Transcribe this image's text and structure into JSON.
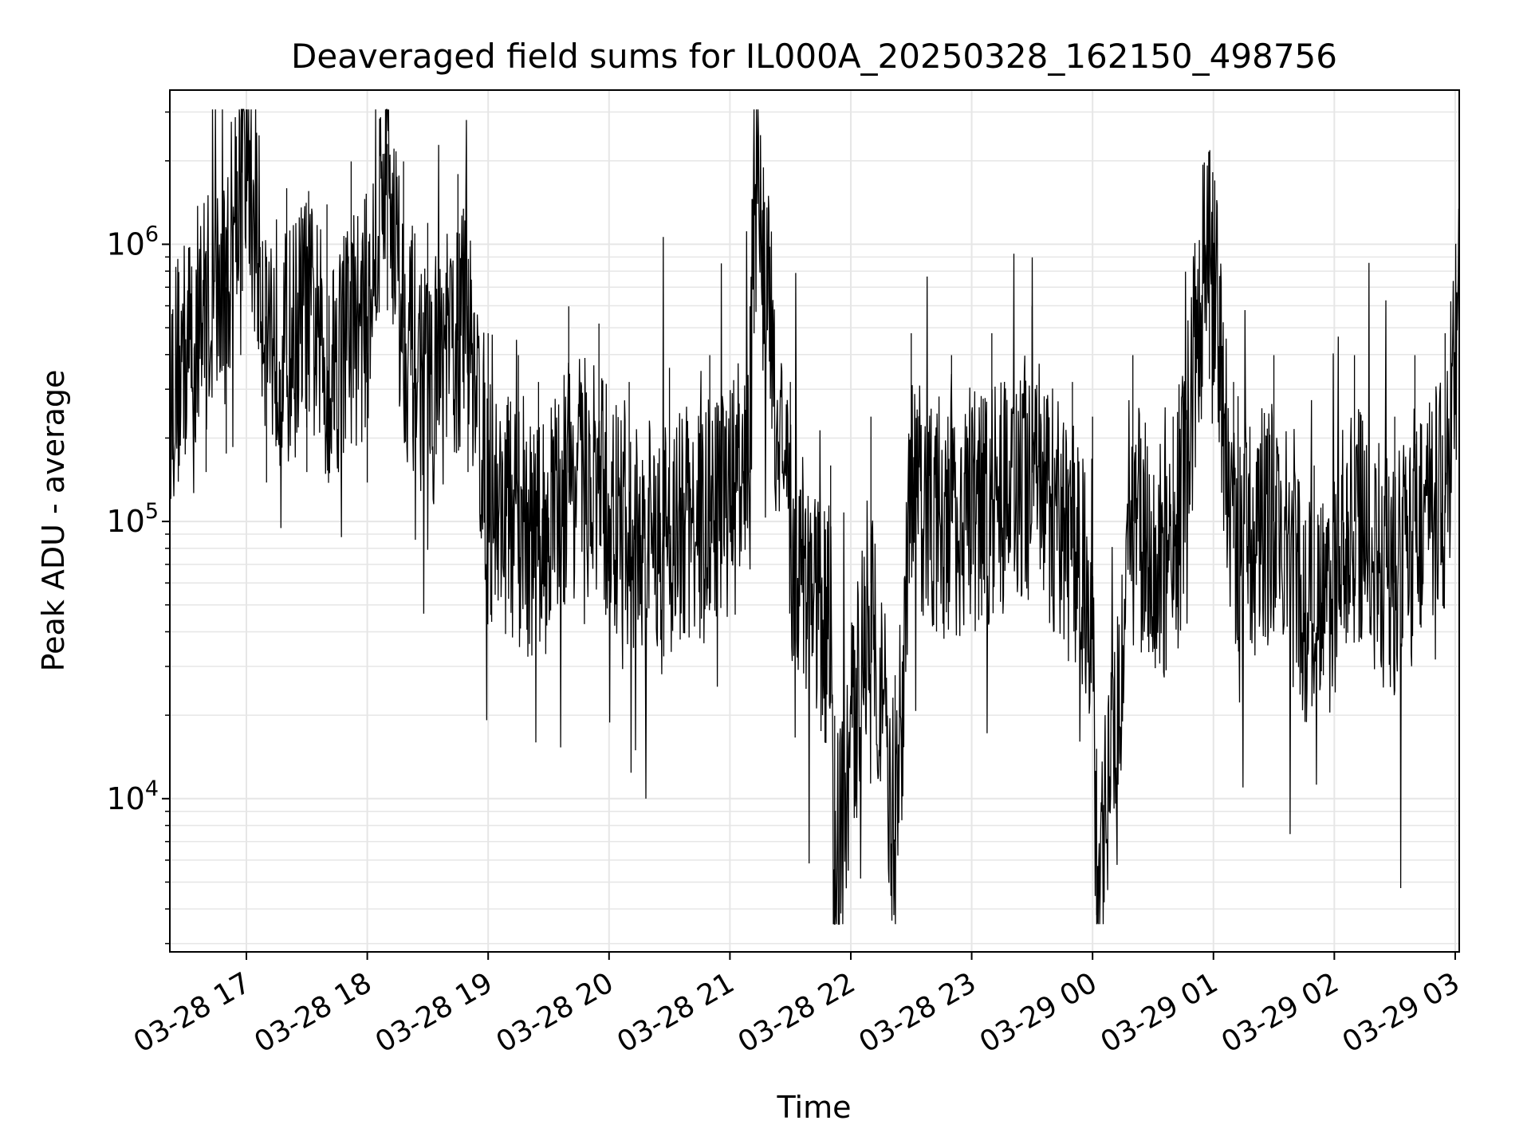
{
  "chart_data": {
    "type": "line",
    "title": "Deaveraged field sums for IL000A_20250328_162150_498756",
    "xlabel": "Time",
    "ylabel": "Peak ADU - average",
    "x_ticks": [
      "03-28 17",
      "03-28 18",
      "03-28 19",
      "03-28 20",
      "03-28 21",
      "03-28 22",
      "03-28 23",
      "03-29 00",
      "03-29 01",
      "03-29 02",
      "03-29 03"
    ],
    "y_ticks": [
      {
        "base": "10",
        "exp": "4",
        "value": 10000
      },
      {
        "base": "10",
        "exp": "5",
        "value": 100000
      },
      {
        "base": "10",
        "exp": "6",
        "value": 1000000
      }
    ],
    "yscale": "log",
    "ylim": [
      2800,
      3600000
    ],
    "xlim": [
      "2025-03-28T16:22:00",
      "2025-03-29T03:02:00"
    ],
    "grid": true,
    "line_color": "#000000",
    "grid_color": "#e6e6e6",
    "series": [
      {
        "x": [
          "2025-03-28T16:22:00",
          "2025-03-28T16:40:00",
          "2025-03-28T16:50:00",
          "2025-03-28T16:58:00",
          "2025-03-28T17:10:00",
          "2025-03-28T17:20:00",
          "2025-03-28T17:30:00",
          "2025-03-28T17:40:00",
          "2025-03-28T17:52:00",
          "2025-03-28T18:00:00",
          "2025-03-28T18:10:00",
          "2025-03-28T18:18:00",
          "2025-03-28T18:30:00",
          "2025-03-28T18:45:00",
          "2025-03-28T18:50:00",
          "2025-03-28T19:00:00",
          "2025-03-28T19:15:00",
          "2025-03-28T19:25:00",
          "2025-03-28T19:40:00",
          "2025-03-28T19:55:00",
          "2025-03-28T20:10:00",
          "2025-03-28T20:30:00",
          "2025-03-28T20:50:00",
          "2025-03-28T21:10:00",
          "2025-03-28T21:12:00",
          "2025-03-28T21:30:00",
          "2025-03-28T21:50:00",
          "2025-03-28T21:52:00",
          "2025-03-28T22:10:00",
          "2025-03-28T22:22:00",
          "2025-03-28T22:30:00",
          "2025-03-28T22:50:00",
          "2025-03-28T23:10:00",
          "2025-03-28T23:30:00",
          "2025-03-28T23:50:00",
          "2025-03-29T00:00:00",
          "2025-03-29T00:02:00",
          "2025-03-29T00:20:00",
          "2025-03-29T00:40:00",
          "2025-03-29T00:58:00",
          "2025-03-29T01:10:00",
          "2025-03-29T01:30:00",
          "2025-03-29T01:50:00",
          "2025-03-29T02:10:00",
          "2025-03-29T02:30:00",
          "2025-03-29T02:40:00",
          "2025-03-29T02:55:00",
          "2025-03-29T03:02:00"
        ],
        "y": [
          300000,
          600000,
          700000,
          2700000,
          550000,
          400000,
          600000,
          350000,
          500000,
          550000,
          2300000,
          500000,
          300000,
          450000,
          600000,
          120000,
          100000,
          80000,
          150000,
          130000,
          80000,
          90000,
          100000,
          150000,
          1900000,
          80000,
          40000,
          5000,
          60000,
          7000,
          120000,
          100000,
          120000,
          150000,
          80000,
          60000,
          3800,
          100000,
          60000,
          1300000,
          80000,
          100000,
          40000,
          100000,
          60000,
          100000,
          120000,
          600000
        ]
      }
    ]
  }
}
